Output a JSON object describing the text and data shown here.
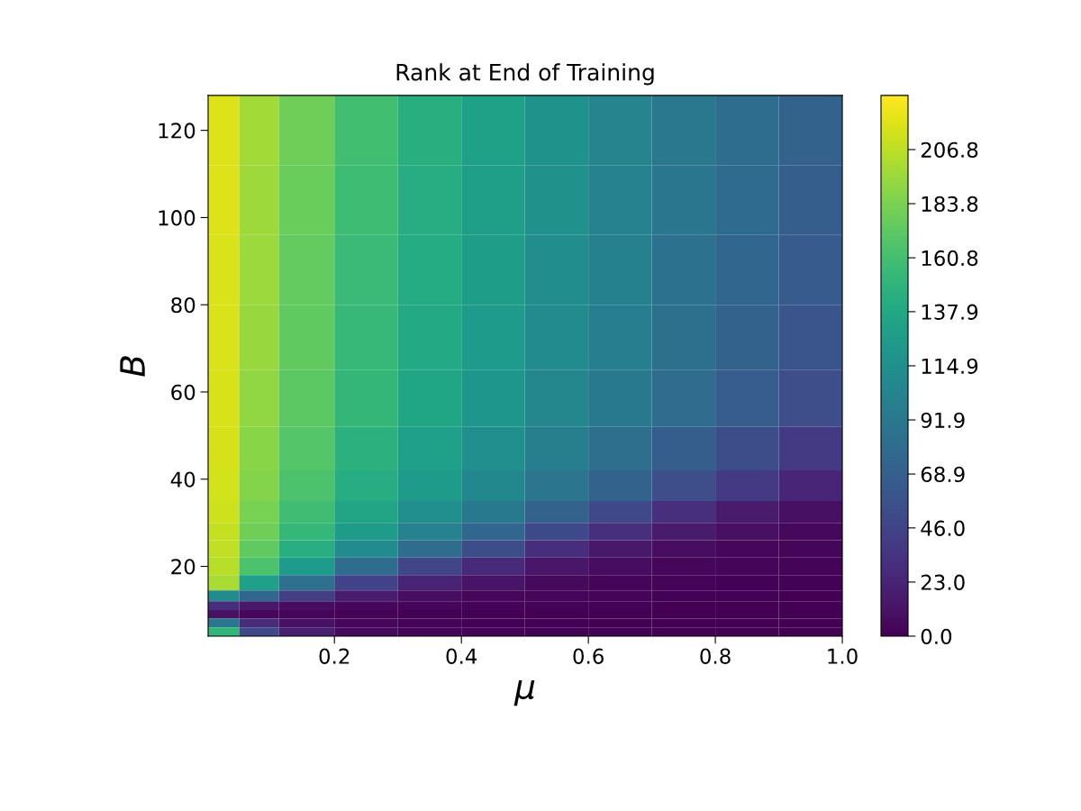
{
  "chart_data": {
    "type": "heatmap",
    "title": "Rank at End of Training",
    "xlabel": "μ",
    "ylabel": "B",
    "x": [
      0.025,
      0.075,
      0.15,
      0.25,
      0.35,
      0.45,
      0.55,
      0.65,
      0.75,
      0.85,
      0.95
    ],
    "y": [
      120,
      104,
      88,
      72,
      58,
      46,
      38,
      32,
      28,
      24,
      20,
      16,
      13,
      11,
      9,
      7,
      5
    ],
    "cells": [
      [
        218,
        198,
        179,
        160,
        145,
        131,
        117,
        104,
        92,
        81,
        71
      ],
      [
        218,
        196,
        177,
        158,
        143,
        129,
        115,
        102,
        90,
        79,
        68
      ],
      [
        217,
        195,
        175,
        156,
        141,
        127,
        113,
        100,
        87,
        76,
        65
      ],
      [
        217,
        194,
        174,
        154,
        139,
        125,
        110,
        97,
        84,
        72,
        61
      ],
      [
        216,
        192,
        172,
        152,
        136,
        121,
        106,
        93,
        80,
        67,
        54
      ],
      [
        215,
        189,
        168,
        147,
        130,
        114,
        98,
        83,
        68,
        53,
        39
      ],
      [
        214,
        187,
        165,
        143,
        125,
        107,
        89,
        71,
        54,
        38,
        24
      ],
      [
        212,
        183,
        159,
        135,
        114,
        93,
        71,
        50,
        31,
        17,
        9
      ],
      [
        210,
        179,
        153,
        126,
        101,
        75,
        51,
        31,
        17,
        9,
        5
      ],
      [
        208,
        174,
        144,
        110,
        80,
        53,
        30,
        15,
        8,
        4,
        3
      ],
      [
        205,
        165,
        125,
        80,
        48,
        27,
        14,
        8,
        4,
        3,
        2
      ],
      [
        200,
        130,
        85,
        45,
        23,
        12,
        6,
        3,
        2,
        1,
        1
      ],
      [
        110,
        75,
        43,
        18,
        8,
        4,
        3,
        2,
        1,
        1,
        0
      ],
      [
        30,
        15,
        8,
        4,
        3,
        2,
        1,
        1,
        0,
        0,
        0
      ],
      [
        10,
        4,
        3,
        2,
        1,
        1,
        0,
        0,
        0,
        0,
        0
      ],
      [
        90,
        28,
        10,
        4,
        2,
        1,
        1,
        0,
        0,
        0,
        0
      ],
      [
        150,
        50,
        19,
        6,
        3,
        2,
        1,
        1,
        0,
        0,
        0
      ]
    ],
    "xlim": [
      0.001,
      1.0
    ],
    "xticks": [
      0.2,
      0.4,
      0.6,
      0.8,
      {
        "value": 1.0,
        "label": "1.0"
      }
    ],
    "ylim": [
      4,
      128
    ],
    "yticks": [
      20,
      40,
      60,
      80,
      100,
      120
    ],
    "clim": [
      0,
      229.8
    ],
    "cticks": [
      {
        "value": 0,
        "label": "0.0"
      },
      {
        "value": 23.0,
        "label": "23.0"
      },
      {
        "value": 46.0,
        "label": "46.0"
      },
      {
        "value": 68.9,
        "label": "68.9"
      },
      {
        "value": 91.9,
        "label": "91.9"
      },
      {
        "value": 114.9,
        "label": "114.9"
      },
      {
        "value": 137.9,
        "label": "137.9"
      },
      {
        "value": 160.8,
        "label": "160.8"
      },
      {
        "value": 183.8,
        "label": "183.8"
      },
      {
        "value": 206.8,
        "label": "206.8"
      }
    ]
  }
}
